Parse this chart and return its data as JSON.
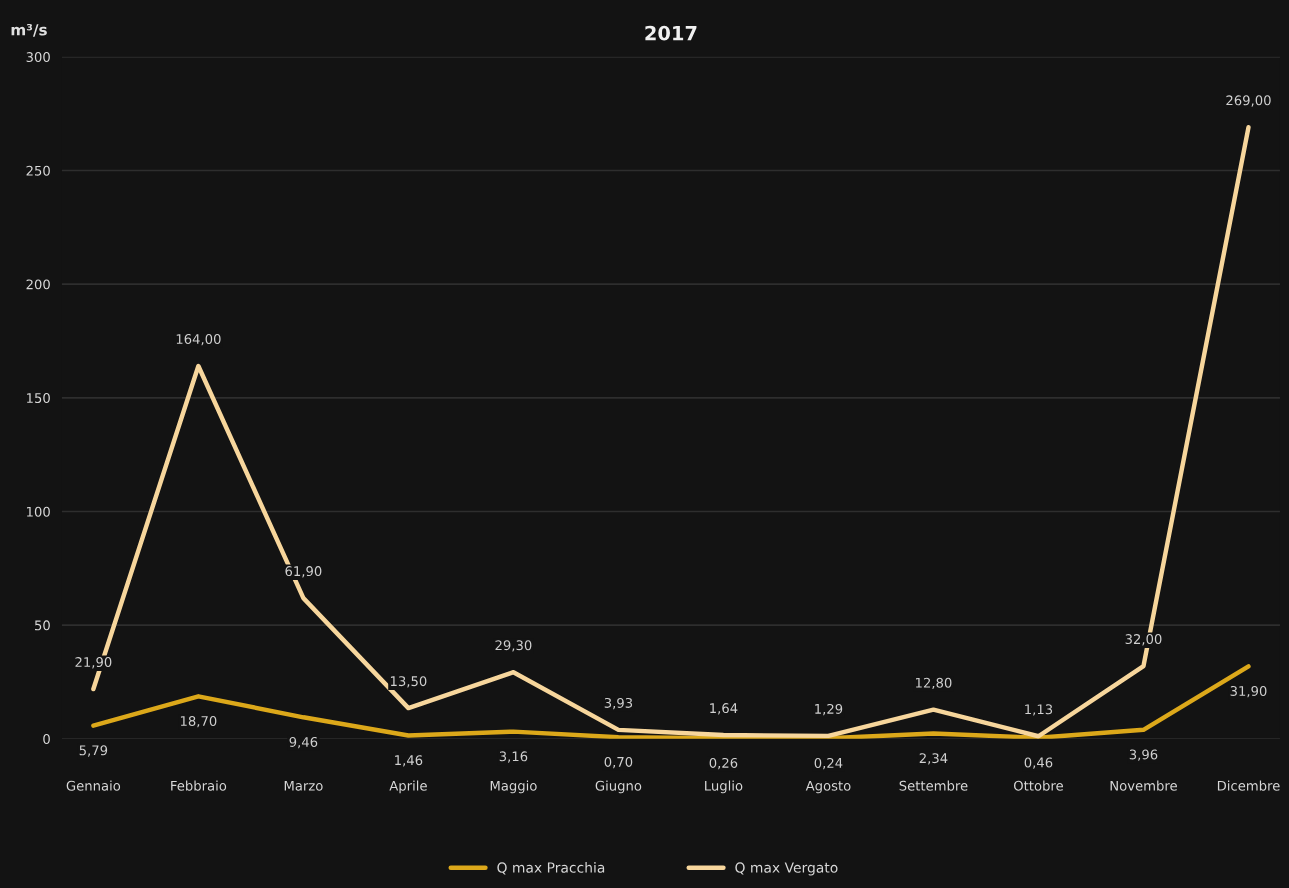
{
  "chart_data": {
    "type": "line",
    "title": "2017",
    "ylabel": "m³/s",
    "categories": [
      "Gennaio",
      "Febbraio",
      "Marzo",
      "Aprile",
      "Maggio",
      "Giugno",
      "Luglio",
      "Agosto",
      "Settembre",
      "Ottobre",
      "Novembre",
      "Dicembre"
    ],
    "series": [
      {
        "name": "Q max Pracchia",
        "color": "#dca81a",
        "values": [
          5.79,
          18.7,
          9.46,
          1.46,
          3.16,
          0.7,
          0.26,
          0.24,
          2.34,
          0.46,
          3.96,
          31.9
        ],
        "value_labels": [
          "5,79",
          "18,70",
          "9,46",
          "1,46",
          "3,16",
          "0,70",
          "0,26",
          "0,24",
          "2,34",
          "0,46",
          "3,96",
          "31,90"
        ]
      },
      {
        "name": "Q max Vergato",
        "color": "#f7d69c",
        "values": [
          21.9,
          164.0,
          61.9,
          13.5,
          29.3,
          3.93,
          1.64,
          1.29,
          12.8,
          1.13,
          32.0,
          269.0
        ],
        "value_labels": [
          "21,90",
          "164,00",
          "61,90",
          "13,50",
          "29,30",
          "3,93",
          "1,64",
          "1,29",
          "12,80",
          "1,13",
          "32,00",
          "269,00"
        ]
      }
    ],
    "ylim": [
      0,
      300
    ],
    "yticks": [
      0,
      50,
      100,
      150,
      200,
      250,
      300
    ],
    "grid": "y",
    "legend": "bottom",
    "marker": "none",
    "line_style": "solid"
  }
}
